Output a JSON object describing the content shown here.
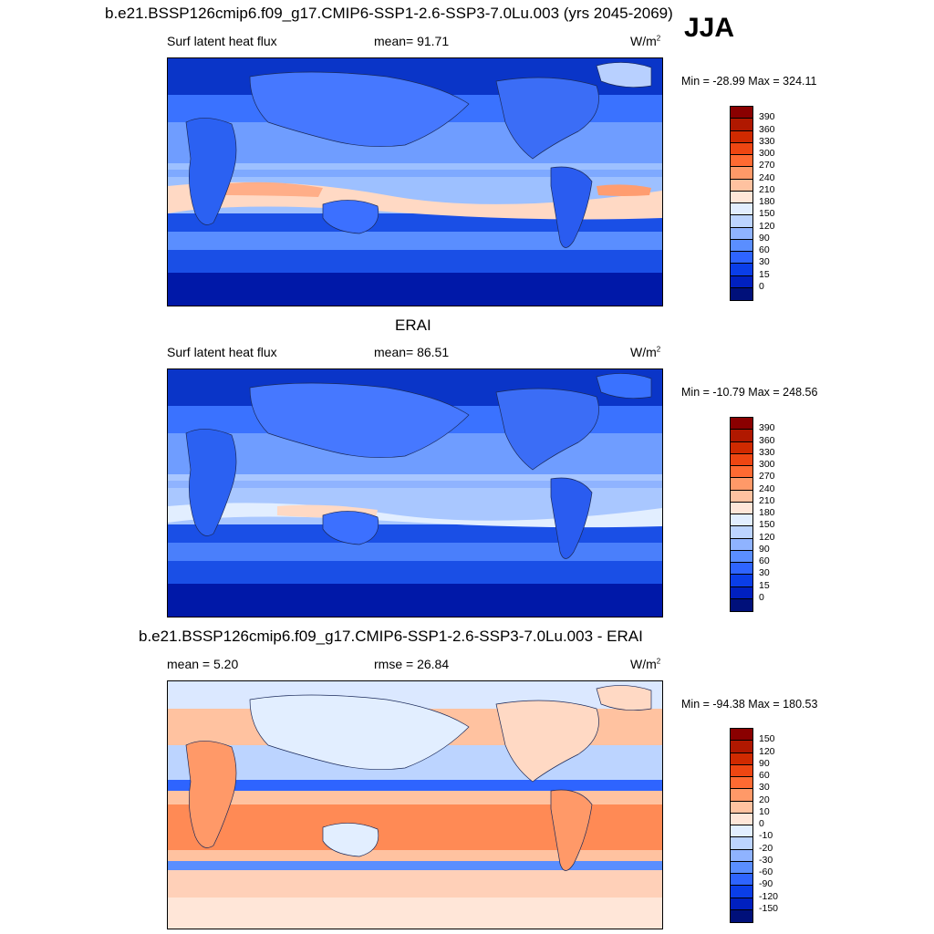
{
  "figure": {
    "title": "b.e21.BSSP126cmip6.f09_g17.CMIP6-SSP1-2.6-SSP3-7.0Lu.003 (yrs 2045-2069)",
    "season": "JJA"
  },
  "panels": [
    {
      "id": "model",
      "heading": "",
      "left_label": "Surf latent heat flux",
      "center_label": "mean=  91.71",
      "units_base": "W/m",
      "units_exp": "2",
      "minmax": "Min = -28.99 Max = 324.11",
      "colorbar": {
        "labels": [
          "390",
          "360",
          "330",
          "300",
          "270",
          "240",
          "210",
          "180",
          "150",
          "120",
          "90",
          "60",
          "30",
          "15",
          "0"
        ],
        "colors": [
          "#8a0000",
          "#b01800",
          "#d02a00",
          "#ee4612",
          "#ff6a32",
          "#ff9968",
          "#ffc2a0",
          "#ffe6d8",
          "#e2eeff",
          "#bcd4ff",
          "#8fb3ff",
          "#5a8eff",
          "#2e64ff",
          "#0a3ee8",
          "#0020c0",
          "#00107a"
        ]
      }
    },
    {
      "id": "obs",
      "heading": "ERAI",
      "left_label": "Surf latent heat flux",
      "center_label": "mean=  86.51",
      "units_base": "W/m",
      "units_exp": "2",
      "minmax": "Min = -10.79 Max = 248.56",
      "colorbar": {
        "labels": [
          "390",
          "360",
          "330",
          "300",
          "270",
          "240",
          "210",
          "180",
          "150",
          "120",
          "90",
          "60",
          "30",
          "15",
          "0"
        ],
        "colors": [
          "#8a0000",
          "#b01800",
          "#d02a00",
          "#ee4612",
          "#ff6a32",
          "#ff9968",
          "#ffc2a0",
          "#ffe6d8",
          "#e2eeff",
          "#bcd4ff",
          "#8fb3ff",
          "#5a8eff",
          "#2e64ff",
          "#0a3ee8",
          "#0020c0",
          "#00107a"
        ]
      }
    },
    {
      "id": "diff",
      "heading": "b.e21.BSSP126cmip6.f09_g17.CMIP6-SSP1-2.6-SSP3-7.0Lu.003 - ERAI",
      "left_label": "mean =   5.20",
      "center_label": "rmse =  26.84",
      "units_base": "W/m",
      "units_exp": "2",
      "minmax": "Min = -94.38 Max = 180.53",
      "colorbar": {
        "labels": [
          "150",
          "120",
          "90",
          "60",
          "30",
          "20",
          "10",
          "0",
          "-10",
          "-20",
          "-30",
          "-60",
          "-90",
          "-120",
          "-150"
        ],
        "colors": [
          "#8a0000",
          "#b01800",
          "#d02a00",
          "#ee4612",
          "#ff6a32",
          "#ff9968",
          "#ffc2a0",
          "#ffe6d8",
          "#e2eeff",
          "#bcd4ff",
          "#8fb3ff",
          "#5a8eff",
          "#2e64ff",
          "#0a3ee8",
          "#0020c0",
          "#00107a"
        ]
      }
    }
  ]
}
